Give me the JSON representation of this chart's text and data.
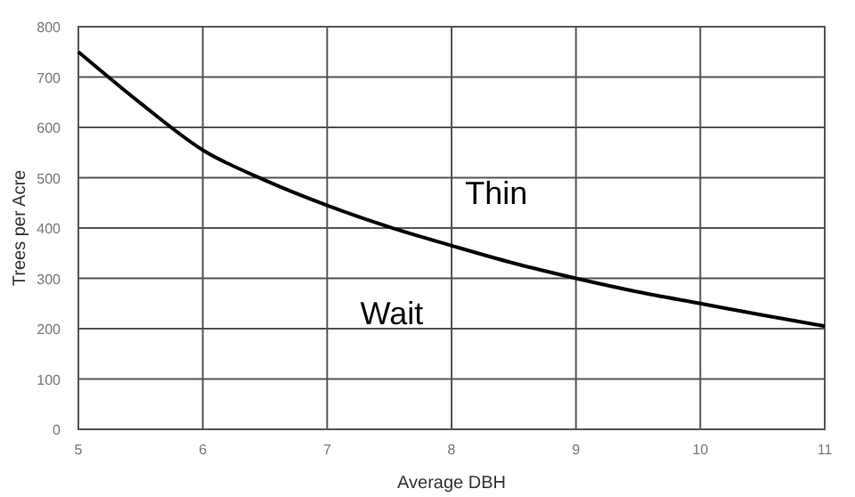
{
  "chart_data": {
    "type": "line",
    "xlabel": "Average DBH",
    "ylabel": "Trees per Acre",
    "x": [
      5,
      5.5,
      6,
      6.5,
      7,
      7.5,
      8,
      8.5,
      9,
      9.5,
      10,
      10.5,
      11
    ],
    "series": [
      {
        "color": "#000000",
        "values": [
          750,
          648,
          555,
          495,
          445,
          402,
          365,
          330,
          300,
          273,
          250,
          227,
          205
        ]
      }
    ],
    "xlim": [
      5,
      11
    ],
    "xticks": [
      5,
      6,
      7,
      8,
      9,
      10,
      11
    ],
    "ylim": [
      0,
      800
    ],
    "yticks": [
      0,
      100,
      200,
      300,
      400,
      500,
      600,
      700,
      800
    ],
    "grid": true,
    "marker": "none",
    "line_style": "solid",
    "annotations": [
      "Thin",
      "Wait"
    ]
  }
}
